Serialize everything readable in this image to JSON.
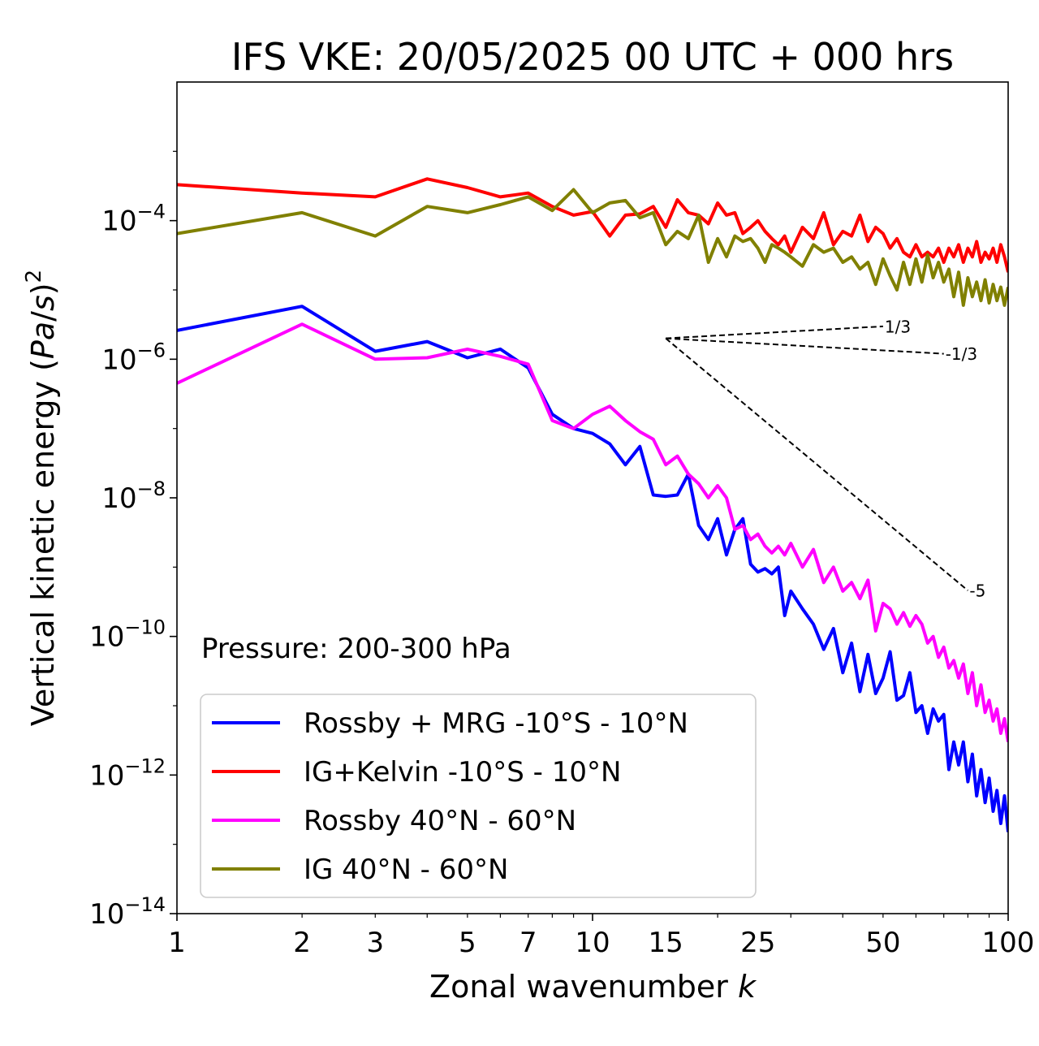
{
  "chart_data": {
    "type": "line",
    "title": "IFS VKE: 20/05/2025 00 UTC + 000 hrs",
    "xlabel": "Zonal wavenumber k",
    "ylabel": "Vertical kinetic energy (Pa/s)²",
    "xscale": "log",
    "yscale": "log",
    "xlim": [
      1,
      100
    ],
    "ylim": [
      1e-14,
      0.01
    ],
    "xticks": [
      1,
      2,
      3,
      5,
      7,
      10,
      15,
      25,
      50,
      100
    ],
    "xtick_labels": [
      "1",
      "2",
      "3",
      "5",
      "7",
      "10",
      "15",
      "25",
      "50",
      "100"
    ],
    "yticks": [
      -4,
      -6,
      -8,
      -10,
      -12,
      -14
    ],
    "ytick_labels": [
      "10",
      "10",
      "10",
      "10",
      "10",
      "10"
    ],
    "ytick_exponents": [
      "−4",
      "−6",
      "−8",
      "−10",
      "−12",
      "−14"
    ],
    "annotation": "Pressure: 200-300 hPa",
    "legend_position": "lower-left",
    "series": [
      {
        "name": "Rossby + MRG -10°S - 10°N",
        "color": "#0000ff",
        "x": [
          1,
          2,
          3,
          4,
          5,
          6,
          7,
          8,
          9,
          10,
          11,
          12,
          13,
          14,
          15,
          16,
          17,
          18,
          19,
          20,
          21,
          22,
          23,
          24,
          25,
          26,
          27,
          28,
          29,
          30,
          32,
          34,
          36,
          38,
          40,
          42,
          44,
          46,
          48,
          50,
          52,
          54,
          56,
          58,
          60,
          62,
          64,
          66,
          68,
          70,
          72,
          74,
          76,
          78,
          80,
          82,
          84,
          86,
          88,
          90,
          92,
          94,
          96,
          98,
          100
        ],
        "y": [
          2.6e-06,
          5.8e-06,
          1.3e-06,
          1.8e-06,
          1.05e-06,
          1.4e-06,
          7.5e-07,
          1.6e-07,
          1e-07,
          8.5e-08,
          6e-08,
          3e-08,
          5.5e-08,
          1.1e-08,
          1.05e-08,
          1.1e-08,
          2.2e-08,
          4e-09,
          2.5e-09,
          5e-09,
          1.5e-09,
          3.5e-09,
          5e-09,
          1.1e-09,
          8.5e-10,
          9.5e-10,
          8e-10,
          1e-09,
          2e-10,
          4.5e-10,
          2.5e-10,
          1.5e-10,
          6.5e-11,
          1.3e-10,
          3e-11,
          8e-11,
          1.6e-11,
          5.5e-11,
          1.5e-11,
          2.5e-11,
          6e-11,
          1.2e-11,
          1.4e-11,
          3e-11,
          8e-12,
          1e-11,
          4e-12,
          9e-12,
          6e-12,
          7.5e-12,
          1.2e-12,
          3e-12,
          1.4e-12,
          3e-12,
          8e-13,
          2e-12,
          5e-13,
          1.2e-12,
          4e-13,
          9e-13,
          3e-13,
          6e-13,
          2e-13,
          5e-13,
          1.5e-13
        ]
      },
      {
        "name": "IG+Kelvin -10°S - 10°N",
        "color": "#ff0000",
        "x": [
          1,
          2,
          3,
          4,
          5,
          6,
          7,
          8,
          9,
          10,
          11,
          12,
          13,
          14,
          15,
          16,
          17,
          18,
          19,
          20,
          21,
          22,
          23,
          24,
          25,
          26,
          27,
          28,
          29,
          30,
          32,
          34,
          36,
          38,
          40,
          42,
          44,
          46,
          48,
          50,
          52,
          54,
          56,
          58,
          60,
          62,
          64,
          66,
          68,
          70,
          72,
          74,
          76,
          78,
          80,
          82,
          84,
          86,
          88,
          90,
          92,
          94,
          96,
          98,
          100
        ],
        "y": [
          0.00033,
          0.00025,
          0.00022,
          0.0004,
          0.0003,
          0.00022,
          0.00025,
          0.00016,
          0.00012,
          0.000135,
          6e-05,
          0.00012,
          0.000125,
          0.00016,
          8e-05,
          0.0002,
          0.00013,
          0.00012,
          9e-05,
          0.00018,
          0.00012,
          0.00013,
          6.5e-05,
          8e-05,
          0.0001,
          7e-05,
          5.5e-05,
          4.5e-05,
          6e-05,
          3.5e-05,
          8e-05,
          5.5e-05,
          0.00013,
          4.5e-05,
          7e-05,
          6e-05,
          0.00012,
          5e-05,
          8e-05,
          6.5e-05,
          4e-05,
          5.5e-05,
          3.5e-05,
          3e-05,
          4.5e-05,
          3e-05,
          3.5e-05,
          3e-05,
          4e-05,
          2.5e-05,
          4e-05,
          3e-05,
          4.5e-05,
          2.5e-05,
          4e-05,
          3e-05,
          5e-05,
          2.5e-05,
          3.5e-05,
          2.8e-05,
          4e-05,
          2.5e-05,
          4.5e-05,
          3e-05,
          1.8e-05
        ]
      },
      {
        "name": "Rossby 40°N - 60°N",
        "color": "#ff00ff",
        "x": [
          1,
          2,
          3,
          4,
          5,
          6,
          7,
          8,
          9,
          10,
          11,
          12,
          13,
          14,
          15,
          16,
          17,
          18,
          19,
          20,
          21,
          22,
          23,
          24,
          25,
          26,
          27,
          28,
          29,
          30,
          32,
          34,
          36,
          38,
          40,
          42,
          44,
          46,
          48,
          50,
          52,
          54,
          56,
          58,
          60,
          62,
          64,
          66,
          68,
          70,
          72,
          74,
          76,
          78,
          80,
          82,
          84,
          86,
          88,
          90,
          92,
          94,
          96,
          98,
          100
        ],
        "y": [
          4.5e-07,
          3.2e-06,
          1e-06,
          1.05e-06,
          1.4e-06,
          1.1e-06,
          8.5e-07,
          1.3e-07,
          1e-07,
          1.6e-07,
          2.1e-07,
          1.3e-07,
          9e-08,
          7e-08,
          3e-08,
          4e-08,
          2.2e-08,
          1.6e-08,
          1e-08,
          1.5e-08,
          1e-08,
          3.5e-09,
          4e-09,
          2.5e-09,
          3e-09,
          2e-09,
          1.6e-09,
          2e-09,
          1.5e-09,
          2.2e-09,
          1e-09,
          1.8e-09,
          6e-10,
          1e-09,
          4.5e-10,
          6e-10,
          3.5e-10,
          6.5e-10,
          1.2e-10,
          3e-10,
          2.5e-10,
          1.5e-10,
          2.2e-10,
          1.4e-10,
          2e-10,
          1.5e-10,
          8e-11,
          1e-10,
          5e-11,
          7e-11,
          3.5e-11,
          4.5e-11,
          2.5e-11,
          4e-11,
          1.5e-11,
          3e-11,
          1e-11,
          2e-11,
          8e-12,
          1.2e-11,
          6e-12,
          9e-12,
          4e-12,
          6.5e-12,
          3e-12
        ]
      },
      {
        "name": "IG 40°N - 60°N",
        "color": "#808000",
        "x": [
          1,
          2,
          3,
          4,
          5,
          6,
          7,
          8,
          9,
          10,
          11,
          12,
          13,
          14,
          15,
          16,
          17,
          18,
          19,
          20,
          21,
          22,
          23,
          24,
          25,
          26,
          27,
          28,
          29,
          30,
          32,
          34,
          36,
          38,
          40,
          42,
          44,
          46,
          48,
          50,
          52,
          54,
          56,
          58,
          60,
          62,
          64,
          66,
          68,
          70,
          72,
          74,
          76,
          78,
          80,
          82,
          84,
          86,
          88,
          90,
          92,
          94,
          96,
          98,
          100
        ],
        "y": [
          6.5e-05,
          0.00013,
          6e-05,
          0.00016,
          0.00013,
          0.00017,
          0.00022,
          0.00014,
          0.00028,
          0.00013,
          0.00018,
          0.000195,
          0.00011,
          0.00013,
          4.5e-05,
          7e-05,
          5.5e-05,
          0.00012,
          2.5e-05,
          5.5e-05,
          3e-05,
          6e-05,
          5e-05,
          5.5e-05,
          4e-05,
          2.5e-05,
          4.5e-05,
          4e-05,
          3.5e-05,
          3e-05,
          2.2e-05,
          4.5e-05,
          3.5e-05,
          4e-05,
          2.5e-05,
          3e-05,
          2e-05,
          2.5e-05,
          1.2e-05,
          2.8e-05,
          1.6e-05,
          1e-05,
          2.5e-05,
          1.2e-05,
          2.8e-05,
          1.3e-05,
          3.2e-05,
          1.5e-05,
          2.5e-05,
          1.3e-05,
          2e-05,
          8e-06,
          1.8e-05,
          6e-06,
          1.5e-05,
          8e-06,
          1.3e-05,
          7e-06,
          1.4e-05,
          6.5e-06,
          1.2e-05,
          7e-06,
          1.1e-05,
          6e-06,
          1.1e-05
        ]
      }
    ],
    "reference_slopes": [
      {
        "label": "1/3",
        "x": [
          15,
          50
        ],
        "y": [
          2e-06,
          2.98e-06
        ]
      },
      {
        "label": "-1/3",
        "x": [
          15,
          70
        ],
        "y": [
          2e-06,
          1.2e-06
        ]
      },
      {
        "label": "-5",
        "x": [
          15,
          80
        ],
        "y": [
          2e-06,
          4.6e-10
        ]
      }
    ]
  }
}
